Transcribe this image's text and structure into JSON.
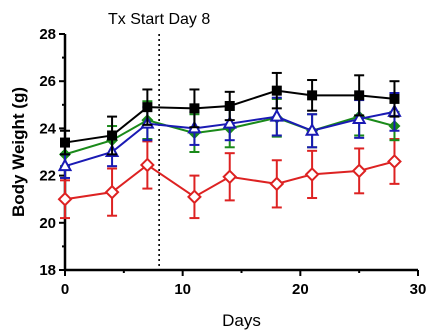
{
  "chart_data": {
    "type": "line",
    "title": "",
    "xlabel": "Days",
    "ylabel": "Body Weight (g)",
    "xlim": [
      0,
      30
    ],
    "ylim": [
      18,
      28
    ],
    "x_ticks": [
      0,
      10,
      20,
      30
    ],
    "y_ticks": [
      18,
      20,
      22,
      24,
      26,
      28
    ],
    "grid": false,
    "legend": "none",
    "annotation": {
      "label": "Tx Start Day 8",
      "x": 8
    },
    "x": [
      0,
      4,
      7,
      11,
      14,
      18,
      21,
      25,
      28
    ],
    "series": [
      {
        "color": "#000000",
        "marker": "square",
        "values": [
          23.4,
          23.7,
          24.9,
          24.85,
          24.95,
          25.6,
          25.4,
          25.4,
          25.25
        ],
        "error": [
          0.5,
          0.8,
          0.75,
          0.8,
          0.6,
          0.75,
          0.65,
          0.85,
          0.75
        ]
      },
      {
        "color": "#1a1ab4",
        "marker": "triangle",
        "values": [
          22.4,
          23.0,
          24.2,
          24.0,
          24.2,
          24.5,
          23.9,
          24.4,
          24.7
        ],
        "error": [
          0.5,
          0.6,
          0.7,
          0.7,
          0.7,
          0.8,
          0.7,
          0.8,
          0.8
        ]
      },
      {
        "color": "#1a8a1a",
        "marker": "diamond",
        "values": [
          22.9,
          23.5,
          24.35,
          23.8,
          24.0,
          24.45,
          23.9,
          24.5,
          24.1
        ],
        "error": [
          0.5,
          0.6,
          0.8,
          0.8,
          0.8,
          0.8,
          0.7,
          0.8,
          0.6
        ]
      },
      {
        "color": "#dd2222",
        "marker": "open-diamond",
        "values": [
          21.0,
          21.3,
          22.45,
          21.1,
          21.95,
          21.65,
          22.05,
          22.2,
          22.6
        ],
        "error": [
          0.8,
          1.0,
          1.0,
          0.9,
          1.0,
          1.0,
          1.0,
          0.95,
          0.95
        ]
      }
    ]
  }
}
